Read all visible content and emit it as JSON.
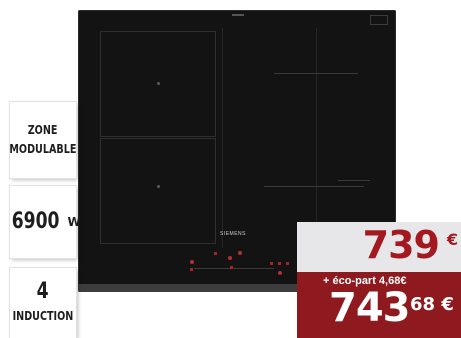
{
  "product": {
    "brand": "SIEMENS",
    "image_description": "induction cooktop"
  },
  "badges": [
    {
      "line1": "ZONE",
      "line2": "MODULABLE"
    },
    {
      "value": "6900",
      "unit": "W"
    },
    {
      "value": "4",
      "line": "INDUCTION"
    }
  ],
  "price": {
    "main": "739",
    "main_currency": "€",
    "eco_part": "+ éco-part 4,68€",
    "total_int": "743",
    "total_cents": "68 €"
  },
  "colors": {
    "price_red": "#a3191f",
    "price_panel_dark": "#8e1a1f",
    "price_panel_light": "#e7e7ea",
    "cooktop": "#131313"
  }
}
